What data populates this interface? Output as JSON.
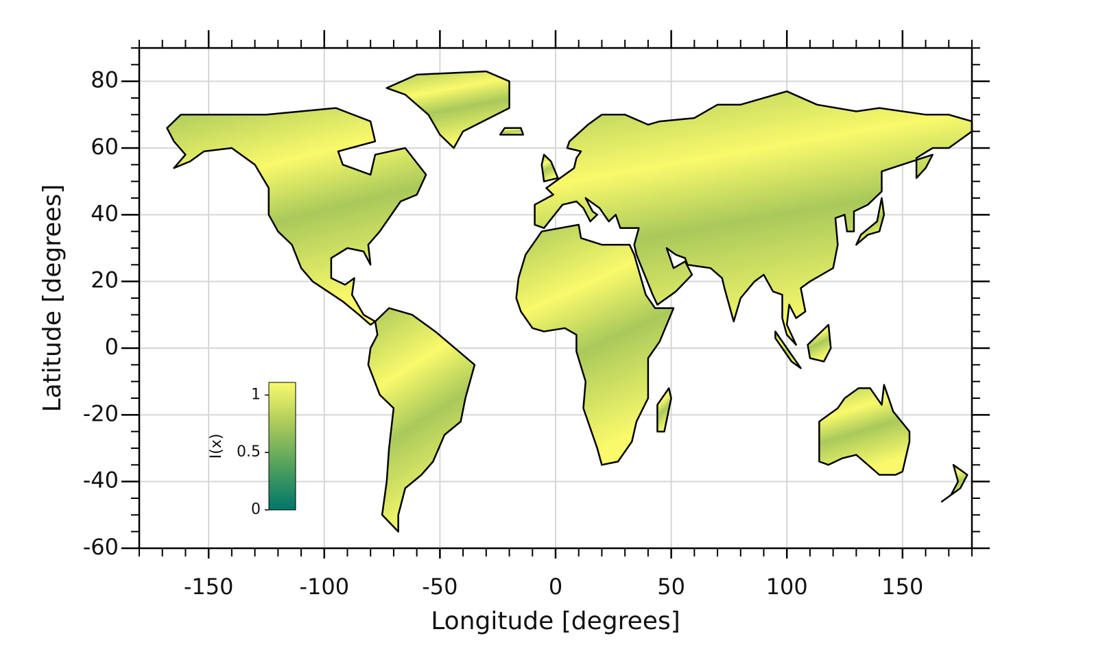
{
  "chart_data": {
    "type": "map",
    "xlabel": "Longitude [degrees]",
    "ylabel": "Latitude [degrees]",
    "xlim": [
      -180,
      180
    ],
    "ylim": [
      -60,
      90
    ],
    "xticks": [
      -150,
      -100,
      -50,
      0,
      50,
      100,
      150
    ],
    "yticks": [
      -60,
      -40,
      -20,
      0,
      20,
      40,
      60,
      80
    ],
    "xminorticks": [
      -180,
      -170,
      -160,
      -140,
      -130,
      -120,
      -110,
      -90,
      -80,
      -70,
      -60,
      -40,
      -30,
      -20,
      -10,
      10,
      20,
      30,
      40,
      60,
      70,
      80,
      90,
      110,
      120,
      130,
      140,
      160,
      170,
      180
    ],
    "yminorticks": [
      -55,
      -50,
      -45,
      -35,
      -30,
      -25,
      -15,
      -10,
      -5,
      5,
      10,
      15,
      25,
      30,
      35,
      45,
      50,
      55,
      65,
      70,
      75,
      85,
      90
    ],
    "grid": true,
    "colorbar": {
      "label": "I(x)",
      "lim": [
        0,
        1.11
      ],
      "ticks": [
        0,
        0.5,
        1
      ],
      "colormap": [
        "#00766a",
        "#4f9f5d",
        "#a9c95b",
        "#f9f96b"
      ]
    }
  }
}
